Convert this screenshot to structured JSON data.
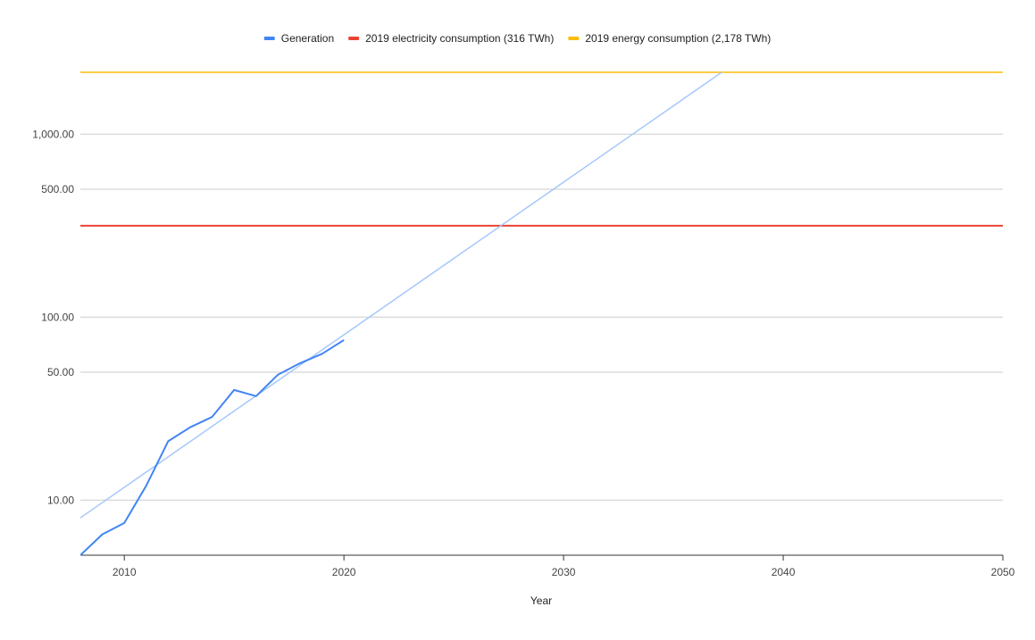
{
  "chart_data": {
    "type": "line",
    "title": "",
    "xlabel": "Year",
    "ylabel": "",
    "yscale": "log",
    "xlim": [
      2008,
      2050
    ],
    "ylim": [
      5,
      2178
    ],
    "x_ticks": [
      2010,
      2020,
      2030,
      2040,
      2050
    ],
    "x_tick_labels": [
      "2010",
      "2020",
      "2030",
      "2040",
      "2050"
    ],
    "y_ticks": [
      10,
      50,
      100,
      500,
      1000
    ],
    "y_tick_labels": [
      "10.00",
      "50.00",
      "100.00",
      "500.00",
      "1,000.00"
    ],
    "grid": true,
    "legend_position": "top",
    "series": [
      {
        "name": "Generation",
        "color": "#4285f4",
        "x": [
          2008,
          2009,
          2010,
          2011,
          2012,
          2013,
          2014,
          2015,
          2016,
          2017,
          2018,
          2019,
          2020
        ],
        "values": [
          5.0,
          6.5,
          7.5,
          12.0,
          21.0,
          25.0,
          28.5,
          40.0,
          37.0,
          48.5,
          56.0,
          63.0,
          75.0
        ]
      },
      {
        "name": "2019 electricity consumption (316 TWh)",
        "color": "#ea4335",
        "x": [
          2008,
          2050
        ],
        "values": [
          316,
          316
        ]
      },
      {
        "name": "2019 energy consumption (2,178 TWh)",
        "color": "#fbbc04",
        "x": [
          2008,
          2050
        ],
        "values": [
          2178,
          2178
        ]
      }
    ],
    "trendline": {
      "of_series": "Generation",
      "color": "#a6c8fb",
      "kind": "exponential",
      "x": [
        2008,
        2037.2
      ],
      "values": [
        8.0,
        2178
      ]
    }
  }
}
